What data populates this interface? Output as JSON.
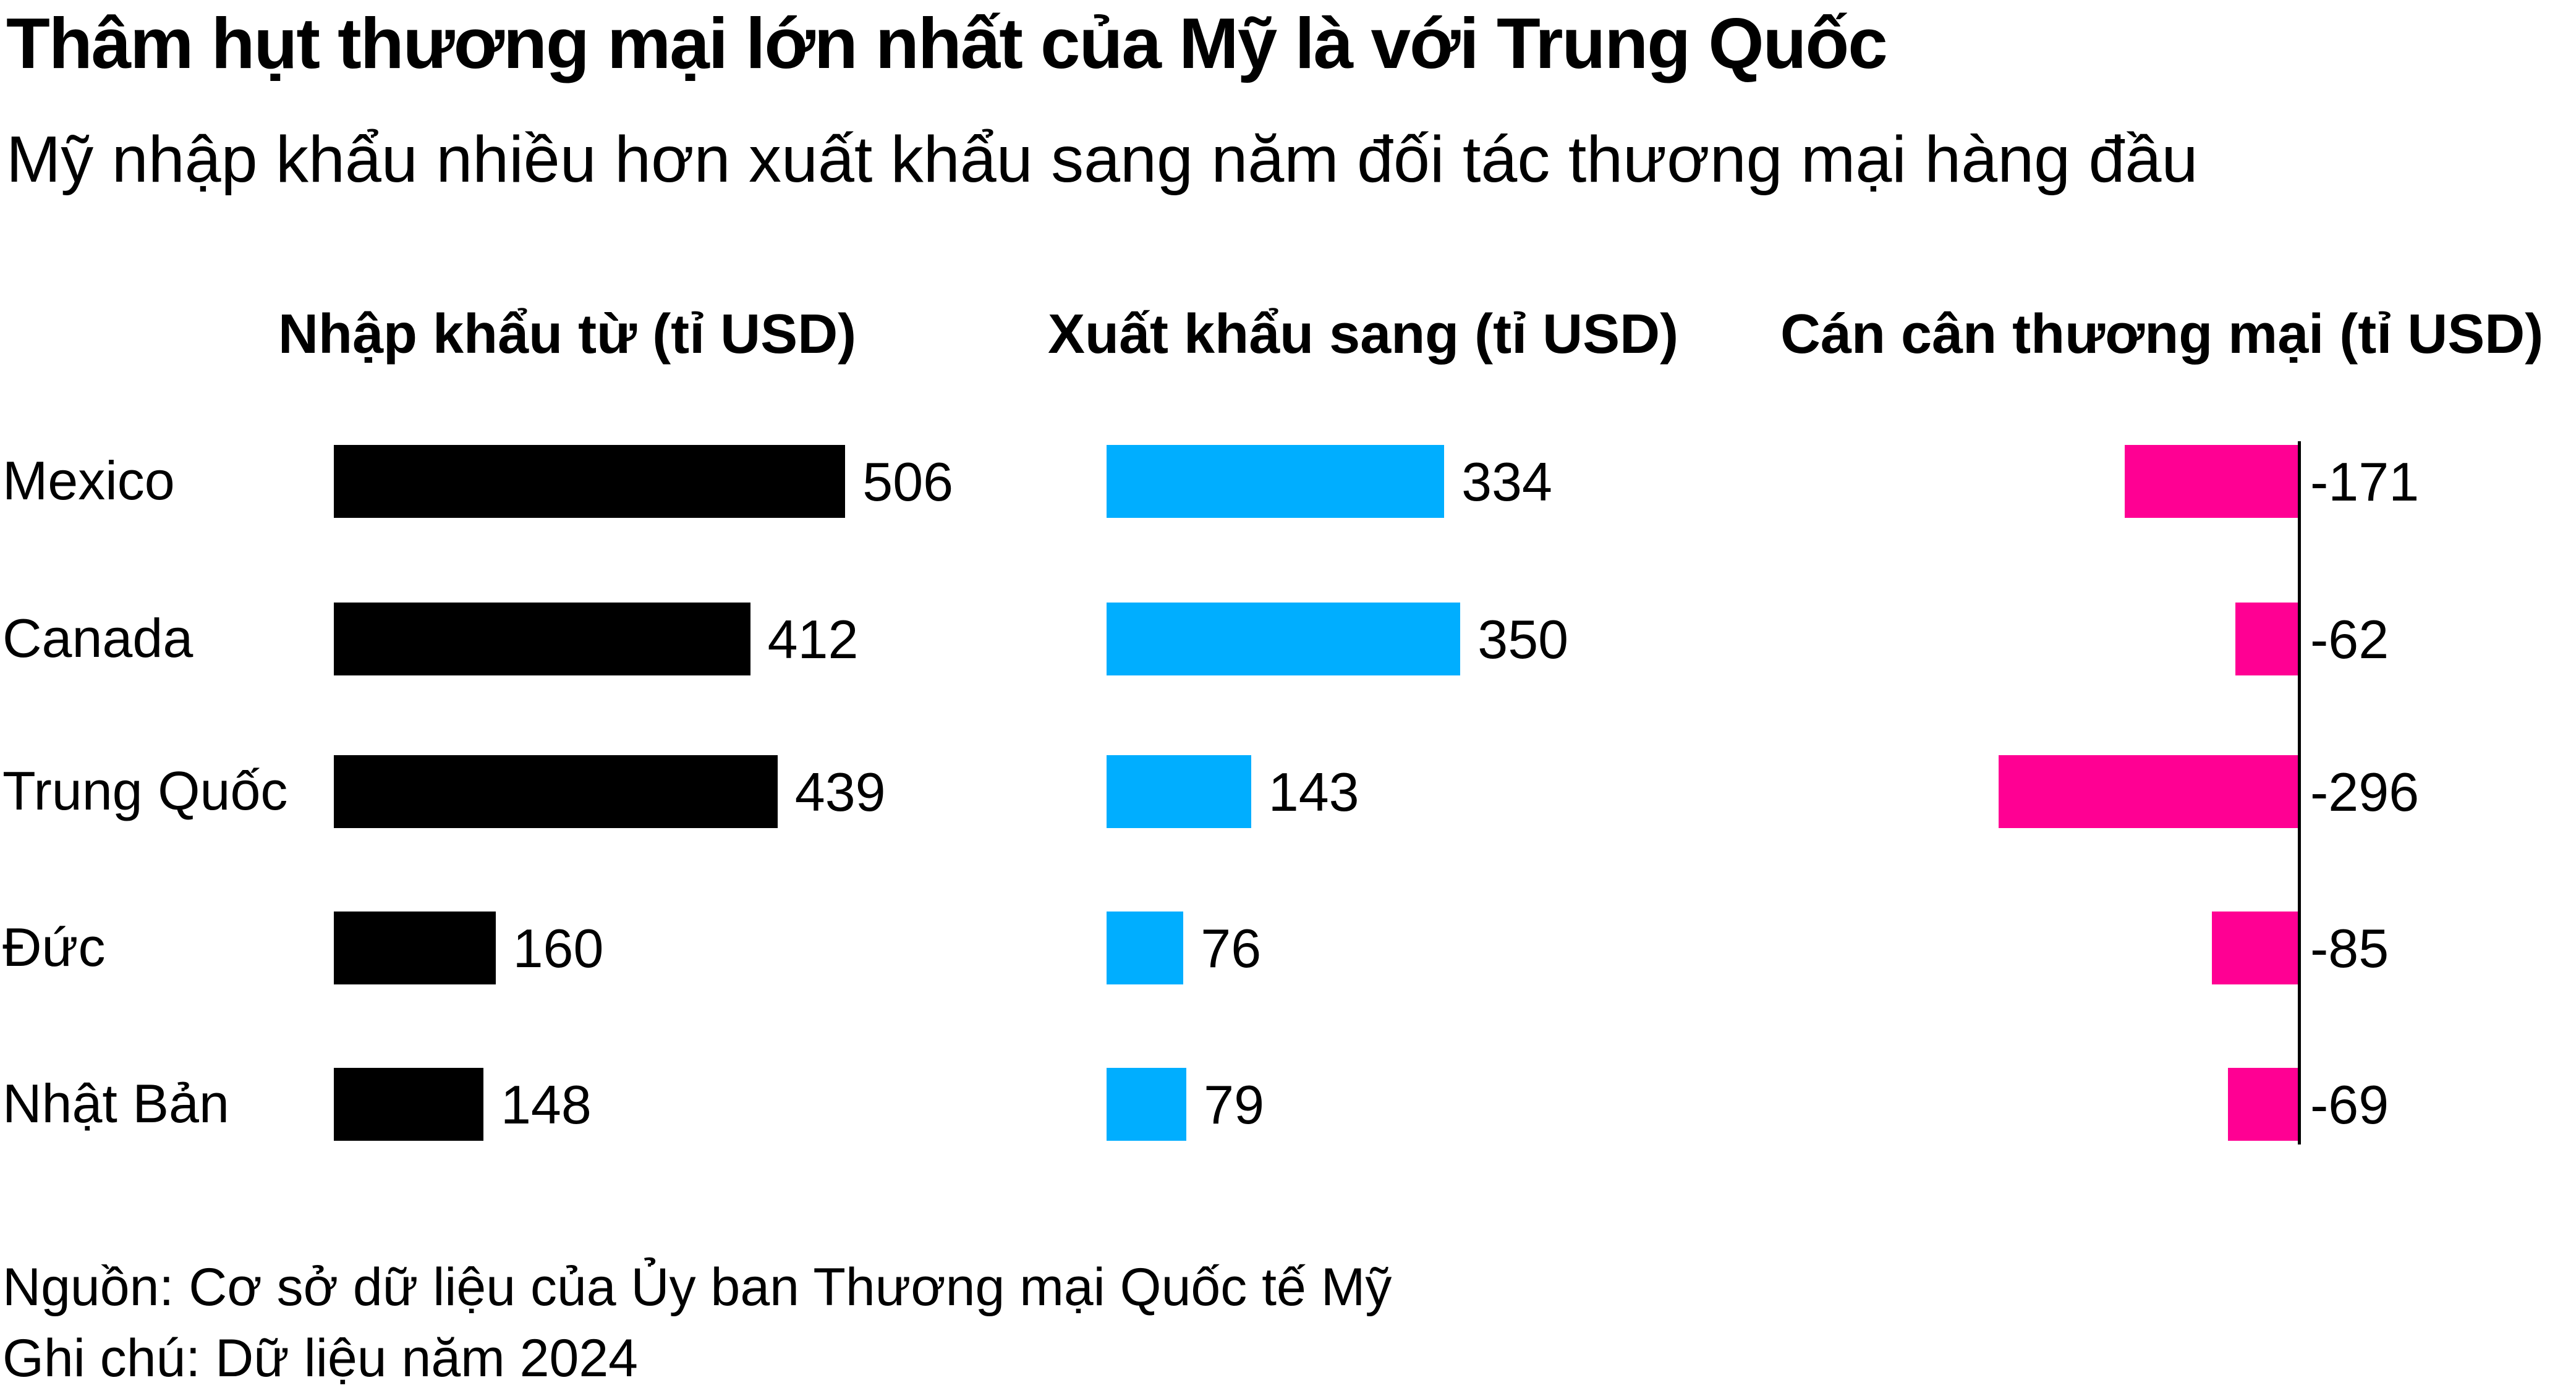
{
  "title": "Thâm hụt thương mại lớn nhất của Mỹ là với Trung Quốc",
  "subtitle": "Mỹ nhập khẩu nhiều hơn xuất khẩu sang năm đối tác thương mại hàng đầu",
  "source": "Nguồn: Cơ sở dữ liệu của Ủy ban Thương mại Quốc tế Mỹ",
  "note": "Ghi chú: Dữ liệu năm 2024",
  "colors": {
    "imports": "#000000",
    "exports": "#00aeff",
    "balance": "#ff0093"
  },
  "chart_data": {
    "type": "bar",
    "categories": [
      "Mexico",
      "Canada",
      "Trung Quốc",
      "Đức",
      "Nhật Bản"
    ],
    "series": [
      {
        "name": "Nhập khẩu từ (tỉ USD)",
        "values": [
          506,
          412,
          439,
          160,
          148
        ]
      },
      {
        "name": "Xuất khẩu sang (tỉ USD)",
        "values": [
          334,
          350,
          143,
          76,
          79
        ]
      },
      {
        "name": "Cán cân thương mại (tỉ USD)",
        "values": [
          -171,
          -62,
          -296,
          -85,
          -69
        ]
      }
    ],
    "value_labels": [
      [
        "506",
        "412",
        "439",
        "160",
        "148"
      ],
      [
        "334",
        "350",
        "143",
        "76",
        "79"
      ],
      [
        "-171",
        "-62",
        "-296",
        "-85",
        "-69"
      ]
    ]
  }
}
